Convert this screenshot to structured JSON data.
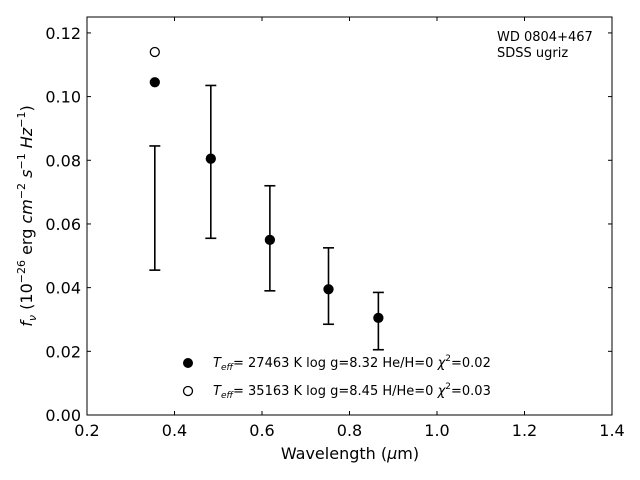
{
  "chart_data": {
    "type": "scatter",
    "xlabel_prefix": "Wavelength (",
    "xlabel_mu": "μ",
    "xlabel_suffix": "m)",
    "ylabel_f": "f",
    "ylabel_nu": "ν",
    "ylabel_rest1": " (10",
    "ylabel_exp1": "−26",
    "ylabel_rest2": " erg ",
    "ylabel_cm": "cm",
    "ylabel_exp2": "−2",
    "ylabel_s": "s",
    "ylabel_exp3": "−1",
    "ylabel_hz": "Hz",
    "ylabel_exp4": "−1",
    "ylabel_close": ")",
    "xlim": [
      0.2,
      1.4
    ],
    "ylim": [
      0.0,
      0.125
    ],
    "xticks": [
      0.2,
      0.4,
      0.6,
      0.8,
      1.0,
      1.2,
      1.4
    ],
    "xtick_labels": [
      "0.2",
      "0.4",
      "0.6",
      "0.8",
      "1.0",
      "1.2",
      "1.4"
    ],
    "yticks": [
      0.0,
      0.02,
      0.04,
      0.06,
      0.08,
      0.1,
      0.12
    ],
    "ytick_labels": [
      "0.00",
      "0.02",
      "0.04",
      "0.06",
      "0.08",
      "0.10",
      "0.12"
    ],
    "annotation_lines": [
      "WD 0804+467",
      "SDSS ugriz"
    ],
    "observed": {
      "x": [
        0.355,
        0.483,
        0.618,
        0.752,
        0.866
      ],
      "y": [
        0.065,
        0.0795,
        0.0555,
        0.0405,
        0.0295
      ],
      "yerr_low": [
        0.0195,
        0.024,
        0.0165,
        0.012,
        0.009
      ],
      "yerr_high": [
        0.0195,
        0.024,
        0.0165,
        0.012,
        0.009
      ]
    },
    "series": [
      {
        "marker": "filled-circle",
        "legend_T": "T",
        "legend_eff": "eff",
        "legend_rest": "= 27463 K  log g=8.32  He/H=0  ",
        "legend_chi": "χ",
        "legend_chi_exp": "2",
        "legend_chi_val": "=0.02",
        "x": [
          0.355,
          0.483,
          0.618,
          0.752,
          0.866
        ],
        "y": [
          0.1045,
          0.0805,
          0.055,
          0.0395,
          0.0305
        ]
      },
      {
        "marker": "open-circle",
        "legend_T": "T",
        "legend_eff": "eff",
        "legend_rest": "= 35163 K  log g=8.45  H/He=0  ",
        "legend_chi": "χ",
        "legend_chi_exp": "2",
        "legend_chi_val": "=0.03",
        "x": [
          0.355
        ],
        "y": [
          0.114
        ]
      }
    ]
  }
}
